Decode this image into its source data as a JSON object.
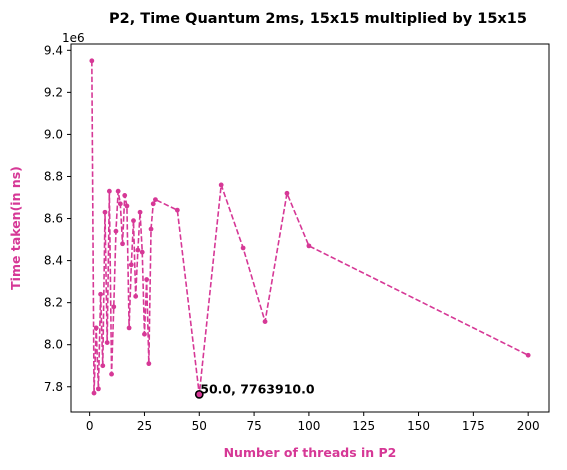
{
  "chart_data": {
    "type": "line",
    "title": "P2, Time Quantum 2ms, 15x15 multiplied by 15x15",
    "xlabel": "Number of threads in P2",
    "ylabel": "Time taken(in ns)",
    "y_offset_label": "1e6",
    "y_scale": 1000000,
    "xlim": [
      -8.5,
      209.5
    ],
    "ylim": [
      7680000,
      9430000
    ],
    "x_ticks": [
      0,
      25,
      50,
      75,
      100,
      125,
      150,
      175,
      200
    ],
    "x_tick_labels": [
      "0",
      "25",
      "50",
      "75",
      "100",
      "125",
      "150",
      "175",
      "200"
    ],
    "y_ticks": [
      7800000,
      8000000,
      8200000,
      8400000,
      8600000,
      8800000,
      9000000,
      9200000,
      9400000
    ],
    "y_tick_labels": [
      "7.8",
      "8.0",
      "8.2",
      "8.4",
      "8.6",
      "8.8",
      "9.0",
      "9.2",
      "9.4"
    ],
    "grid": false,
    "legend": "none",
    "series": [
      {
        "color": "#d63896",
        "line_style": "dashed",
        "marker": "circle",
        "points": [
          {
            "x": 1,
            "y": 9350000
          },
          {
            "x": 2,
            "y": 7770000
          },
          {
            "x": 3,
            "y": 8080000
          },
          {
            "x": 4,
            "y": 7790000
          },
          {
            "x": 5,
            "y": 8240000
          },
          {
            "x": 6,
            "y": 7900000
          },
          {
            "x": 7,
            "y": 8630000
          },
          {
            "x": 8,
            "y": 8010000
          },
          {
            "x": 9,
            "y": 8730000
          },
          {
            "x": 10,
            "y": 7860000
          },
          {
            "x": 11,
            "y": 8180000
          },
          {
            "x": 12,
            "y": 8540000
          },
          {
            "x": 13,
            "y": 8730000
          },
          {
            "x": 14,
            "y": 8670000
          },
          {
            "x": 15,
            "y": 8480000
          },
          {
            "x": 16,
            "y": 8710000
          },
          {
            "x": 17,
            "y": 8660000
          },
          {
            "x": 18,
            "y": 8080000
          },
          {
            "x": 19,
            "y": 8380000
          },
          {
            "x": 20,
            "y": 8590000
          },
          {
            "x": 21,
            "y": 8230000
          },
          {
            "x": 22,
            "y": 8450000
          },
          {
            "x": 23,
            "y": 8630000
          },
          {
            "x": 24,
            "y": 8440000
          },
          {
            "x": 25,
            "y": 8050000
          },
          {
            "x": 26,
            "y": 8310000
          },
          {
            "x": 27,
            "y": 7910000
          },
          {
            "x": 28,
            "y": 8550000
          },
          {
            "x": 29,
            "y": 8670000
          },
          {
            "x": 30,
            "y": 8690000
          },
          {
            "x": 40,
            "y": 8640000
          },
          {
            "x": 50,
            "y": 7763910
          },
          {
            "x": 60,
            "y": 8760000
          },
          {
            "x": 70,
            "y": 8460000
          },
          {
            "x": 80,
            "y": 8110000
          },
          {
            "x": 90,
            "y": 8720000
          },
          {
            "x": 100,
            "y": 8470000
          },
          {
            "x": 200,
            "y": 7950000
          }
        ]
      }
    ],
    "highlight": {
      "x": 50,
      "y": 7763910,
      "label": "50.0, 7763910.0",
      "marker_face": "#d63896",
      "marker_edge": "#000000"
    },
    "axis_label_color": "#d63896"
  }
}
